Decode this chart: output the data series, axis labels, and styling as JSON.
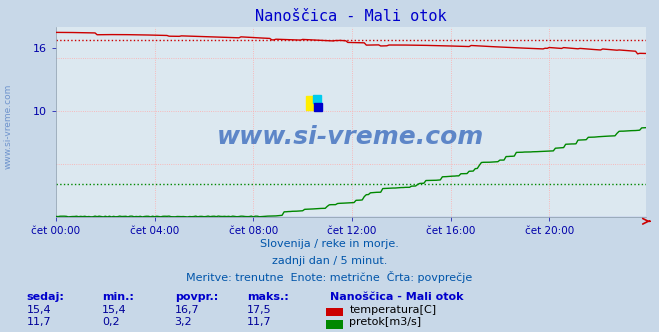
{
  "title": "Nanoščica - Mali otok",
  "title_color": "#0000cc",
  "title_fontsize": 11,
  "bg_color": "#c8d8e8",
  "plot_bg_color": "#dce8f0",
  "grid_color": "#ffaaaa",
  "xlabel_color": "#0000aa",
  "xticklabels": [
    "čet 00:00",
    "čet 04:00",
    "čet 08:00",
    "čet 12:00",
    "čet 16:00",
    "čet 20:00"
  ],
  "xtick_positions": [
    0,
    48,
    96,
    144,
    192,
    240
  ],
  "ylim_min": 14.5,
  "ylim_max": 18.5,
  "ytick_left": [
    16,
    10
  ],
  "n_points": 288,
  "temp_start": 17.45,
  "temp_end": 15.38,
  "temp_avg": 16.7,
  "temp_color": "#cc0000",
  "flow_avg": 3.2,
  "flow_min": 0.2,
  "flow_max": 11.7,
  "flow_color": "#008800",
  "height_color": "#0000cc",
  "watermark_text": "www.si-vreme.com",
  "watermark_color": "#3366bb",
  "subtitle1": "Slovenija / reke in morje.",
  "subtitle2": "zadnji dan / 5 minut.",
  "subtitle3": "Meritve: trenutne  Enote: metrične  Črta: povprečje",
  "subtitle_color": "#0055aa",
  "legend_title": "Nanoščica - Mali otok",
  "legend_color": "#0000cc",
  "table_headers": [
    "sedaj:",
    "min.:",
    "povpr.:",
    "maks.:"
  ],
  "table_temp": [
    "15,4",
    "15,4",
    "16,7",
    "17,5"
  ],
  "table_flow": [
    "11,7",
    "0,2",
    "3,2",
    "11,7"
  ],
  "table_color": "#000099"
}
